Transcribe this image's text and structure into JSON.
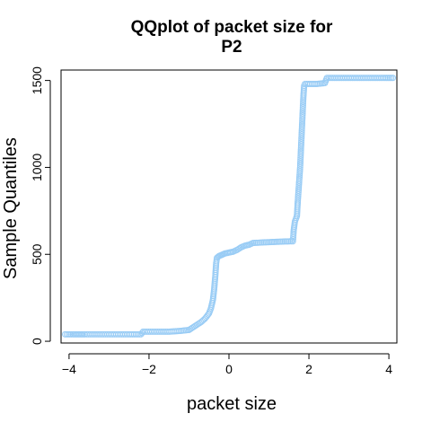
{
  "chart_data": {
    "type": "scatter",
    "title_line1": "QQplot of packet size for",
    "title_line2": "P2",
    "xlabel": "packet size",
    "ylabel": "Sample Quantiles",
    "xlim": [
      -4.2,
      4.2
    ],
    "ylim": [
      -10,
      1560
    ],
    "xticks": [
      -4,
      -2,
      0,
      2,
      4
    ],
    "yticks": [
      0,
      500,
      1000,
      1500
    ],
    "marker": "open-circle",
    "point_color": "#99ccf5",
    "curve": [
      [
        -4.1,
        40
      ],
      [
        -3.9,
        40
      ],
      [
        -3.8,
        40
      ],
      [
        -3.7,
        40
      ],
      [
        -3.6,
        40
      ],
      [
        -3.0,
        40
      ],
      [
        -2.5,
        40
      ],
      [
        -2.2,
        40
      ],
      [
        -2.15,
        55
      ],
      [
        -1.5,
        55
      ],
      [
        -1.2,
        60
      ],
      [
        -1.0,
        65
      ],
      [
        -0.9,
        80
      ],
      [
        -0.8,
        95
      ],
      [
        -0.7,
        110
      ],
      [
        -0.6,
        130
      ],
      [
        -0.5,
        160
      ],
      [
        -0.45,
        190
      ],
      [
        -0.4,
        240
      ],
      [
        -0.37,
        300
      ],
      [
        -0.34,
        380
      ],
      [
        -0.32,
        450
      ],
      [
        -0.3,
        480
      ],
      [
        -0.25,
        490
      ],
      [
        -0.2,
        495
      ],
      [
        -0.15,
        500
      ],
      [
        -0.1,
        505
      ],
      [
        0.0,
        510
      ],
      [
        0.1,
        515
      ],
      [
        0.2,
        525
      ],
      [
        0.3,
        540
      ],
      [
        0.4,
        550
      ],
      [
        0.5,
        555
      ],
      [
        0.6,
        565
      ],
      [
        0.8,
        568
      ],
      [
        1.0,
        570
      ],
      [
        1.2,
        572
      ],
      [
        1.4,
        574
      ],
      [
        1.6,
        575
      ],
      [
        1.62,
        640
      ],
      [
        1.65,
        690
      ],
      [
        1.7,
        720
      ],
      [
        1.72,
        800
      ],
      [
        1.75,
        900
      ],
      [
        1.78,
        1000
      ],
      [
        1.8,
        1100
      ],
      [
        1.82,
        1200
      ],
      [
        1.84,
        1300
      ],
      [
        1.86,
        1400
      ],
      [
        1.88,
        1470
      ],
      [
        1.9,
        1480
      ],
      [
        2.2,
        1480
      ],
      [
        2.4,
        1485
      ],
      [
        2.45,
        1515
      ],
      [
        3.0,
        1515
      ],
      [
        3.5,
        1515
      ],
      [
        3.9,
        1515
      ],
      [
        4.1,
        1515
      ]
    ]
  }
}
